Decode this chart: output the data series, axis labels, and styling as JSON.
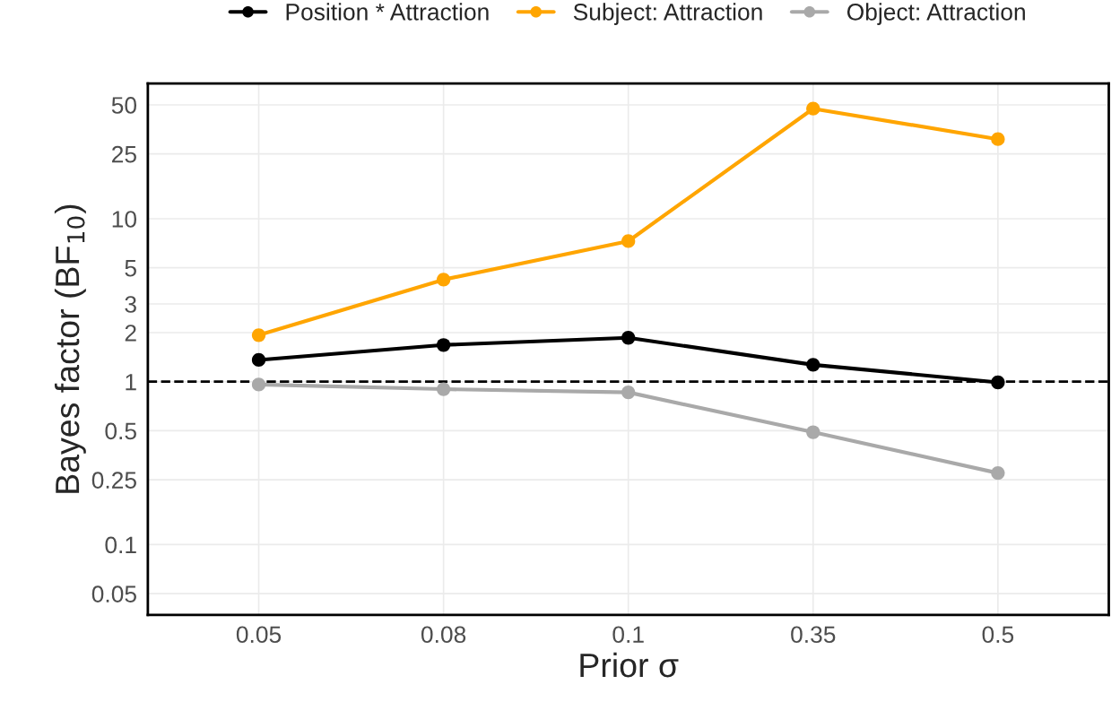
{
  "chart_data": {
    "type": "line",
    "xlabel": "Prior σ",
    "ylabel": "Bayes factor (BF$_{10}$)",
    "categories": [
      "0.05",
      "0.08",
      "0.1",
      "0.35",
      "0.5"
    ],
    "series": [
      {
        "name": "Position * Attraction",
        "color": "#000000",
        "values": [
          1.36,
          1.68,
          1.86,
          1.27,
          0.99
        ]
      },
      {
        "name": "Subject: Attraction",
        "color": "#ffa500",
        "values": [
          1.93,
          4.23,
          7.29,
          47.4,
          30.8
        ]
      },
      {
        "name": "Object: Attraction",
        "color": "#a9a9a9",
        "values": [
          0.96,
          0.9,
          0.86,
          0.49,
          0.275
        ]
      }
    ],
    "log": "y",
    "ylim": [
      0.037,
      67.6
    ],
    "yticks": [
      0.05,
      0.1,
      0.25,
      0.5,
      1,
      2,
      3,
      5,
      10,
      25,
      50
    ],
    "ref_lines": [
      {
        "axis": "y",
        "value": 1,
        "color": "#000000",
        "line_style": "dashed"
      }
    ],
    "grid": true,
    "legend": "top",
    "marker": "circle",
    "line_style": "solid"
  }
}
